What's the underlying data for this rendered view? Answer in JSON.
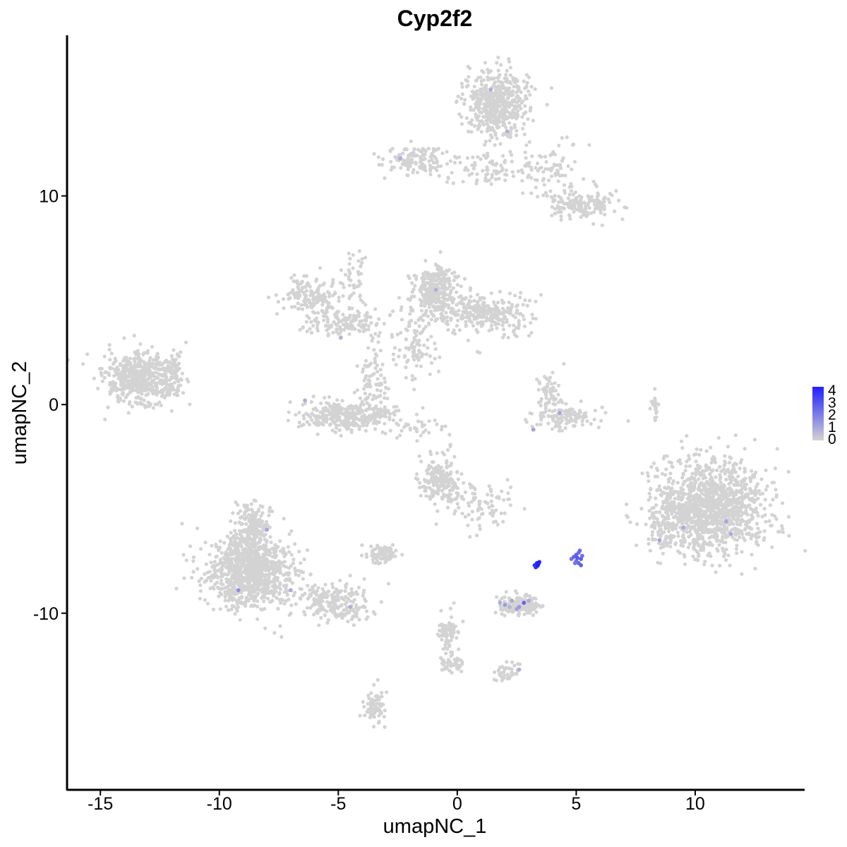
{
  "chart_data": {
    "type": "scatter",
    "title": "Cyp2f2",
    "xlabel": "umapNC_1",
    "ylabel": "umapNC_2",
    "xlim": [
      -16.4,
      14.6
    ],
    "ylim": [
      -18.5,
      17.7
    ],
    "x_ticks": [
      -15,
      -10,
      -5,
      0,
      5,
      10
    ],
    "x_tick_labels": [
      "-15",
      "-10",
      "-5",
      "0",
      "5",
      "10"
    ],
    "y_ticks": [
      -10,
      0,
      10
    ],
    "y_tick_labels": [
      "-10",
      "0",
      "10"
    ],
    "grid": false,
    "color_scale": {
      "low": "#d3d3d3",
      "high": "#2020ff",
      "range": [
        0,
        4
      ]
    },
    "legend": {
      "position": "right",
      "ticks": [
        0,
        1,
        2,
        3,
        4
      ],
      "tick_labels": [
        "0",
        "1",
        "2",
        "3",
        "4"
      ]
    },
    "clusters": [
      {
        "cx": -13.3,
        "cy": 1.2,
        "sx": 0.9,
        "sy": 0.75,
        "n": 520
      },
      {
        "cx": -11.9,
        "cy": 1.7,
        "sx": 0.3,
        "sy": 0.6,
        "n": 40
      },
      {
        "cx": -6.2,
        "cy": 5.2,
        "sx": 0.7,
        "sy": 0.5,
        "n": 170
      },
      {
        "cx": -4.6,
        "cy": 3.9,
        "sx": 0.9,
        "sy": 0.4,
        "n": 140
      },
      {
        "cx": -4.2,
        "cy": 5.8,
        "sx": 0.25,
        "sy": 1.1,
        "n": 45
      },
      {
        "cx": -4.6,
        "cy": -0.5,
        "sx": 1.2,
        "sy": 0.45,
        "n": 330
      },
      {
        "cx": -3.5,
        "cy": 1.2,
        "sx": 0.35,
        "sy": 1.0,
        "n": 80
      },
      {
        "cx": -1.0,
        "cy": 5.3,
        "sx": 0.55,
        "sy": 0.8,
        "n": 230
      },
      {
        "cx": 1.2,
        "cy": 4.4,
        "sx": 1.1,
        "sy": 0.55,
        "n": 300
      },
      {
        "cx": -1.8,
        "cy": 3.0,
        "sx": 0.5,
        "sy": 1.0,
        "n": 100
      },
      {
        "cx": 1.7,
        "cy": 14.4,
        "sx": 0.8,
        "sy": 0.9,
        "n": 520
      },
      {
        "cx": -1.8,
        "cy": 11.7,
        "sx": 0.9,
        "sy": 0.4,
        "n": 140
      },
      {
        "cx": 1.2,
        "cy": 11.2,
        "sx": 1.0,
        "sy": 0.5,
        "n": 70
      },
      {
        "cx": 3.8,
        "cy": 11.5,
        "sx": 0.7,
        "sy": 0.6,
        "n": 80
      },
      {
        "cx": 5.2,
        "cy": 9.6,
        "sx": 0.8,
        "sy": 0.45,
        "n": 170
      },
      {
        "cx": 4.5,
        "cy": -0.6,
        "sx": 0.8,
        "sy": 0.35,
        "n": 120
      },
      {
        "cx": 3.8,
        "cy": 0.5,
        "sx": 0.35,
        "sy": 0.6,
        "n": 50
      },
      {
        "cx": 10.7,
        "cy": -4.9,
        "sx": 1.35,
        "sy": 1.35,
        "n": 1200
      },
      {
        "cx": 8.8,
        "cy": -5.7,
        "sx": 0.5,
        "sy": 0.8,
        "n": 120
      },
      {
        "cx": -0.7,
        "cy": -3.6,
        "sx": 0.55,
        "sy": 0.7,
        "n": 200
      },
      {
        "cx": 1.0,
        "cy": -4.8,
        "sx": 0.7,
        "sy": 0.6,
        "n": 80
      },
      {
        "cx": -3.2,
        "cy": -7.2,
        "sx": 0.35,
        "sy": 0.25,
        "n": 90
      },
      {
        "cx": -8.7,
        "cy": -8.0,
        "sx": 1.1,
        "sy": 1.0,
        "n": 900
      },
      {
        "cx": -8.6,
        "cy": -6.0,
        "sx": 0.5,
        "sy": 0.8,
        "n": 200
      },
      {
        "cx": -5.4,
        "cy": -9.4,
        "sx": 0.9,
        "sy": 0.55,
        "n": 180
      },
      {
        "cx": -4.5,
        "cy": -10.0,
        "sx": 0.4,
        "sy": 0.3,
        "n": 40
      },
      {
        "cx": 2.5,
        "cy": -9.6,
        "sx": 0.55,
        "sy": 0.25,
        "n": 180
      },
      {
        "cx": -0.4,
        "cy": -11.0,
        "sx": 0.25,
        "sy": 0.6,
        "n": 70
      },
      {
        "cx": -0.2,
        "cy": -12.4,
        "sx": 0.3,
        "sy": 0.3,
        "n": 40
      },
      {
        "cx": 2.1,
        "cy": -12.8,
        "sx": 0.35,
        "sy": 0.25,
        "n": 40
      },
      {
        "cx": -3.5,
        "cy": -14.5,
        "sx": 0.25,
        "sy": 0.5,
        "n": 70
      },
      {
        "cx": -0.9,
        "cy": 6.0,
        "sx": 0.4,
        "sy": 0.3,
        "n": 70
      },
      {
        "cx": 8.3,
        "cy": 0.1,
        "sx": 0.12,
        "sy": 0.5,
        "n": 20
      },
      {
        "cx": -1.5,
        "cy": -1.1,
        "sx": 0.6,
        "sy": 0.3,
        "n": 25
      }
    ],
    "expressed_points": [
      {
        "x": 3.3,
        "y": -7.7,
        "v": 4.0
      },
      {
        "x": 3.35,
        "y": -7.6,
        "v": 4.0
      },
      {
        "x": 3.4,
        "y": -7.65,
        "v": 3.8
      },
      {
        "x": 3.45,
        "y": -7.55,
        "v": 3.9
      },
      {
        "x": 3.3,
        "y": -7.8,
        "v": 3.7
      },
      {
        "x": 3.25,
        "y": -7.7,
        "v": 3.6
      },
      {
        "x": 3.38,
        "y": -7.72,
        "v": 4.0
      },
      {
        "x": 3.42,
        "y": -7.62,
        "v": 3.9
      },
      {
        "x": 4.9,
        "y": -7.3,
        "v": 2.5
      },
      {
        "x": 5.0,
        "y": -7.2,
        "v": 2.6
      },
      {
        "x": 5.1,
        "y": -7.1,
        "v": 2.4
      },
      {
        "x": 5.2,
        "y": -7.4,
        "v": 2.7
      },
      {
        "x": 5.0,
        "y": -7.5,
        "v": 2.3
      },
      {
        "x": 5.1,
        "y": -7.6,
        "v": 2.5
      },
      {
        "x": 5.2,
        "y": -7.7,
        "v": 2.6
      },
      {
        "x": 4.8,
        "y": -7.4,
        "v": 2.2
      },
      {
        "x": 5.15,
        "y": -7.0,
        "v": 2.4
      },
      {
        "x": 5.05,
        "y": -7.35,
        "v": 2.8
      },
      {
        "x": 4.95,
        "y": -7.6,
        "v": 2.1
      },
      {
        "x": 5.25,
        "y": -7.25,
        "v": 2.3
      },
      {
        "x": 2.0,
        "y": -9.6,
        "v": 1.2
      },
      {
        "x": 2.3,
        "y": -9.4,
        "v": 1.0
      },
      {
        "x": 2.6,
        "y": -9.7,
        "v": 1.3
      },
      {
        "x": 2.8,
        "y": -9.5,
        "v": 2.5
      },
      {
        "x": 1.8,
        "y": -9.5,
        "v": 0.8
      },
      {
        "x": 2.5,
        "y": -9.8,
        "v": 1.1
      },
      {
        "x": 3.0,
        "y": -9.4,
        "v": 0.9
      },
      {
        "x": 2.2,
        "y": -9.7,
        "v": 0.7
      },
      {
        "x": -9.2,
        "y": -8.9,
        "v": 1.5
      },
      {
        "x": -8.0,
        "y": -6.0,
        "v": 1.0
      },
      {
        "x": -7.0,
        "y": -8.9,
        "v": 0.9
      },
      {
        "x": -4.5,
        "y": -9.7,
        "v": 0.8
      },
      {
        "x": 8.5,
        "y": -6.5,
        "v": 1.0
      },
      {
        "x": 11.3,
        "y": -5.6,
        "v": 1.0
      },
      {
        "x": 11.5,
        "y": -6.2,
        "v": 0.9
      },
      {
        "x": 4.3,
        "y": -0.4,
        "v": 1.0
      },
      {
        "x": 3.2,
        "y": -1.2,
        "v": 1.1
      },
      {
        "x": -6.4,
        "y": 0.2,
        "v": 0.8
      },
      {
        "x": -2.4,
        "y": 11.8,
        "v": 0.8
      },
      {
        "x": 1.4,
        "y": 15.1,
        "v": 0.9
      },
      {
        "x": 2.1,
        "y": 13.1,
        "v": 0.8
      },
      {
        "x": -0.9,
        "y": 5.5,
        "v": 0.8
      },
      {
        "x": 2.6,
        "y": -12.7,
        "v": 0.8
      },
      {
        "x": -4.9,
        "y": 3.2,
        "v": 0.7
      },
      {
        "x": 9.5,
        "y": -5.9,
        "v": 0.9
      }
    ]
  }
}
